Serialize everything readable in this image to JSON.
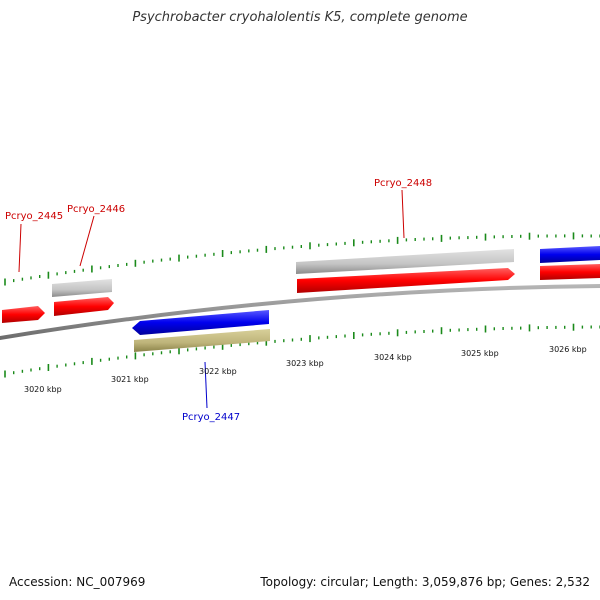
{
  "title": "Psychrobacter cryohalolentis K5, complete genome",
  "accession_text": "Accession: NC_007969",
  "summary_text": "Topology: circular; Length: 3,059,876 bp; Genes: 2,532",
  "colors": {
    "forward_gene": "#ff0000",
    "reverse_gene": "#0000ff",
    "grey_feature": "#c0c0c0",
    "olive_feature": "#c0b878",
    "backbone": "#888888",
    "tick": "#1a8a1a",
    "label_forward": "#cc0000",
    "label_reverse": "#0000cc"
  },
  "scale_labels": [
    "3020 kbp",
    "3021 kbp",
    "3022 kbp",
    "3023 kbp",
    "3024 kbp",
    "3025 kbp",
    "3026 kbp"
  ],
  "gene_labels": [
    {
      "name": "Pcryo_2445",
      "strand": "forward"
    },
    {
      "name": "Pcryo_2446",
      "strand": "forward"
    },
    {
      "name": "Pcryo_2448",
      "strand": "forward"
    },
    {
      "name": "Pcryo_2447",
      "strand": "reverse"
    }
  ]
}
